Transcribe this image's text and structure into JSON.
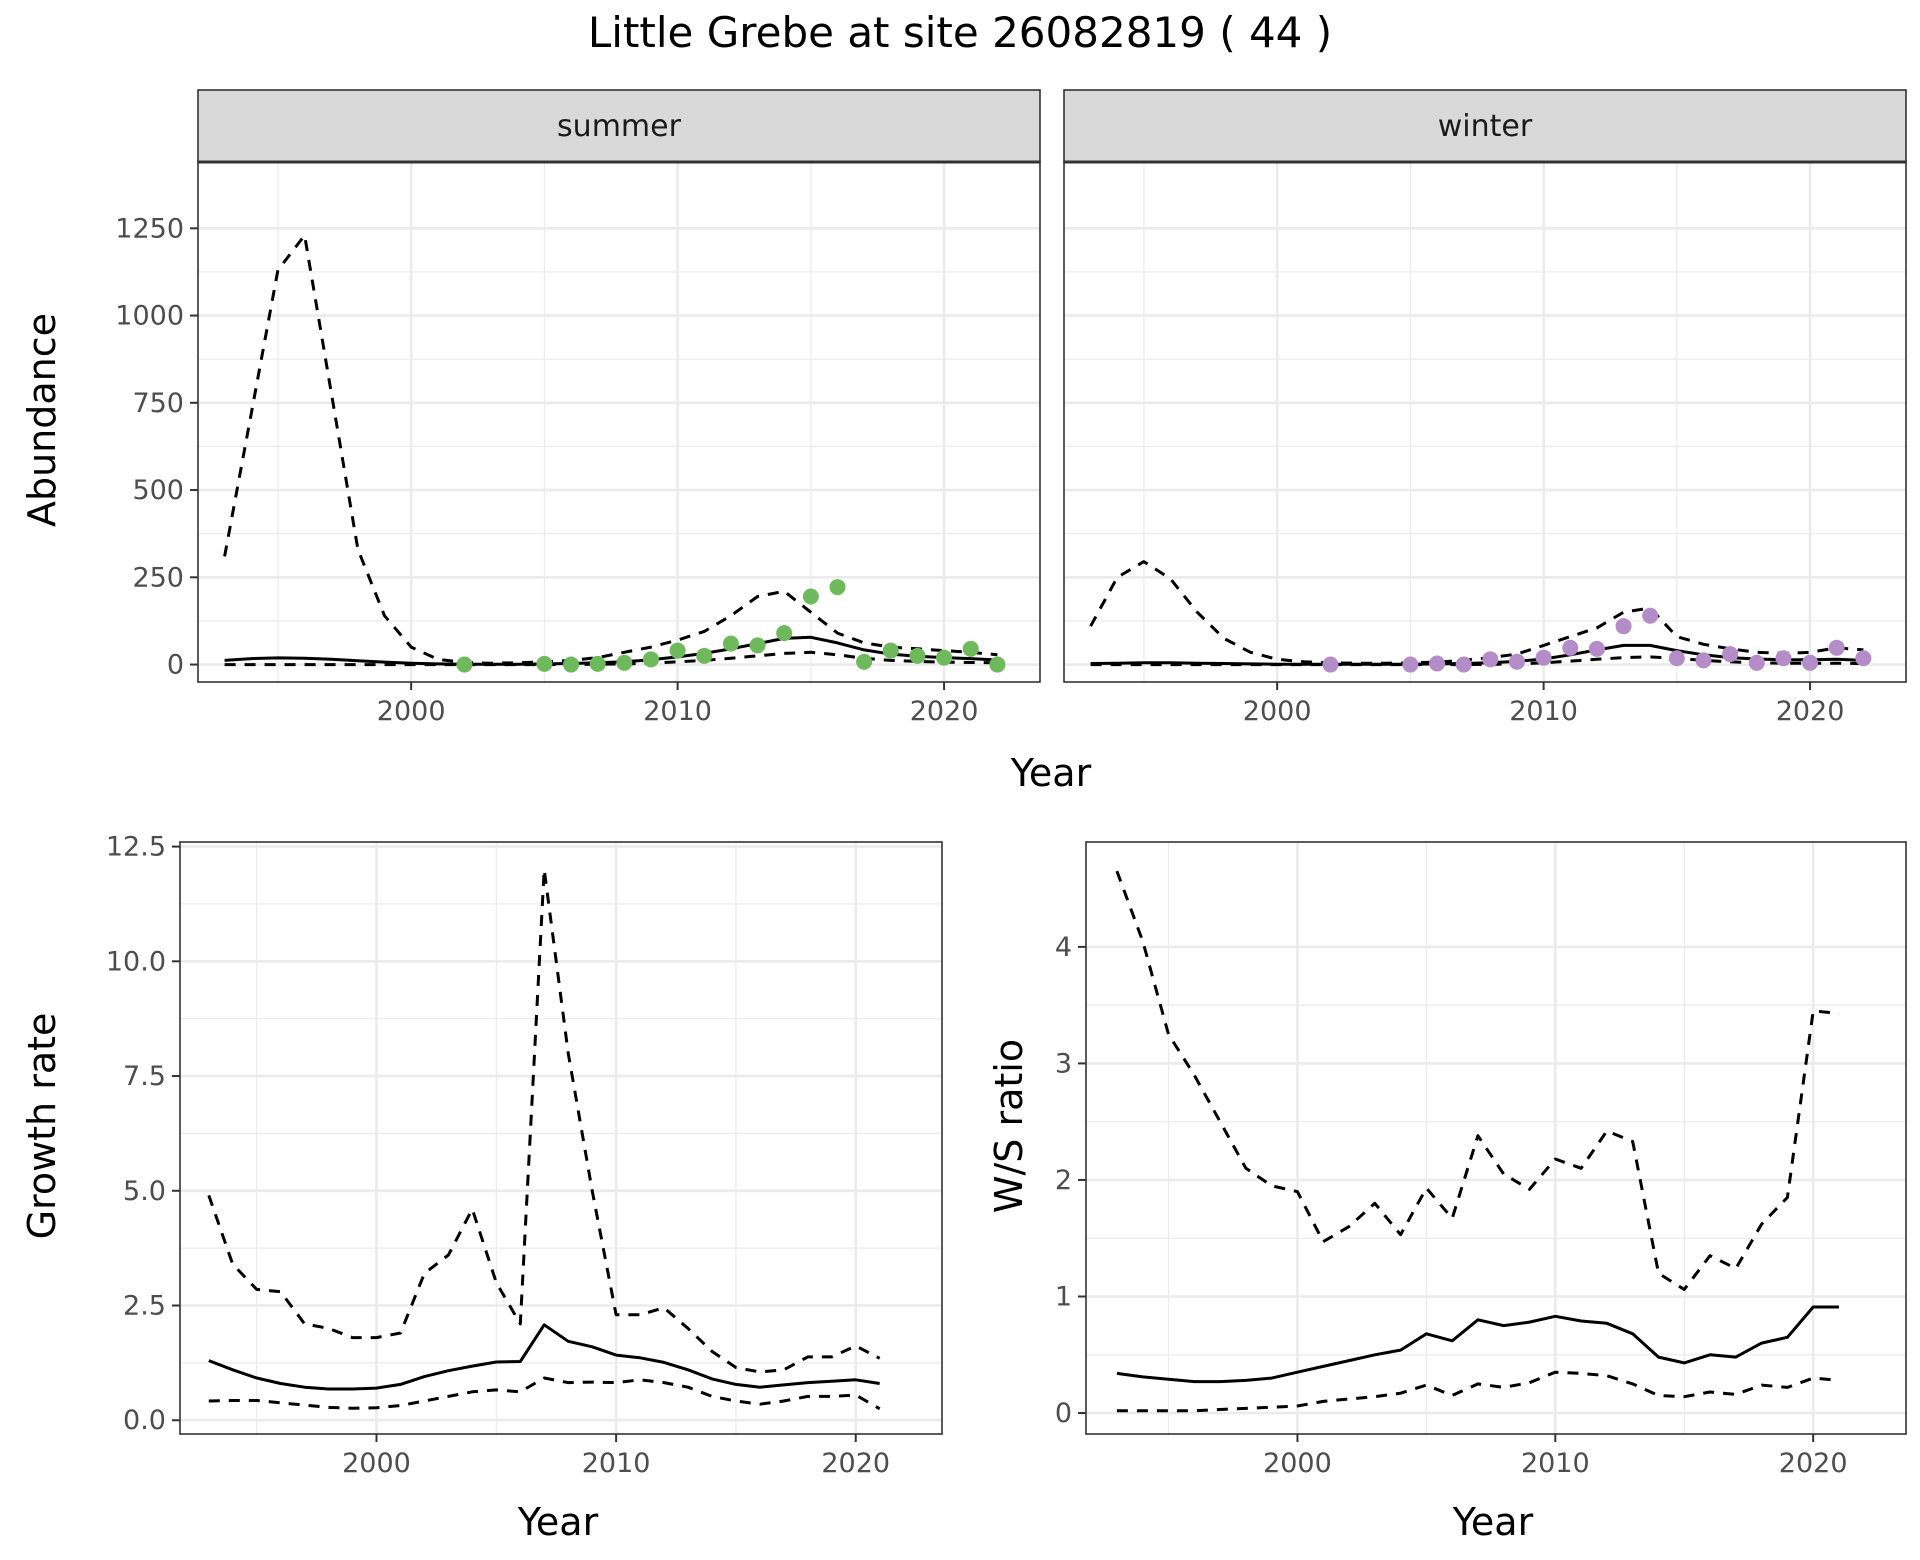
{
  "title": "Little Grebe at site 26082819 ( 44 )",
  "colors": {
    "summer_points": "#6db95b",
    "winter_points": "#b48cc8",
    "line": "#000000",
    "grid": "#ebebeb",
    "strip": "#d9d9d9"
  },
  "top": {
    "ylabel": "Abundance",
    "xlabel": "Year",
    "xlim": [
      1992,
      2023.6
    ],
    "ylim": [
      -50,
      1440
    ],
    "yticks": [
      0,
      250,
      500,
      750,
      1000,
      1250
    ],
    "ytick_labels": [
      "0",
      "250",
      "500",
      "750",
      "1000",
      "1250"
    ],
    "xticks": [
      2000,
      2010,
      2020
    ],
    "xtick_labels": [
      "2000",
      "2010",
      "2020"
    ]
  },
  "bottom_left": {
    "ylabel": "Growth rate",
    "xlabel": "Year",
    "xlim": [
      1991.8,
      2023.6
    ],
    "ylim": [
      -0.3,
      12.6
    ],
    "yticks": [
      0,
      2.5,
      5,
      7.5,
      10,
      12.5
    ],
    "ytick_labels": [
      "0.0",
      "2.5",
      "5.0",
      "7.5",
      "10.0",
      "12.5"
    ],
    "xticks": [
      2000,
      2010,
      2020
    ],
    "xtick_labels": [
      "2000",
      "2010",
      "2020"
    ]
  },
  "bottom_right": {
    "ylabel": "W/S ratio",
    "xlabel": "Year",
    "xlim": [
      1991.8,
      2023.6
    ],
    "ylim": [
      -0.18,
      4.9
    ],
    "yticks": [
      0,
      1,
      2,
      3,
      4
    ],
    "ytick_labels": [
      "0",
      "1",
      "2",
      "3",
      "4"
    ],
    "xticks": [
      2000,
      2010,
      2020
    ],
    "xtick_labels": [
      "2000",
      "2010",
      "2020"
    ]
  },
  "chart_data": [
    {
      "type": "line",
      "panel": "summer",
      "strip_label": "summer",
      "x": [
        1993,
        1994,
        1995,
        1996,
        1997,
        1998,
        1999,
        2000,
        2001,
        2002,
        2003,
        2004,
        2005,
        2006,
        2007,
        2008,
        2009,
        2010,
        2011,
        2012,
        2013,
        2014,
        2015,
        2016,
        2017,
        2018,
        2019,
        2020,
        2021,
        2022
      ],
      "series": [
        {
          "role": "estimate",
          "style": "solid",
          "values": [
            12,
            17,
            19,
            18,
            15,
            11,
            7,
            4,
            2,
            1,
            1,
            1,
            2,
            3,
            5,
            8,
            14,
            22,
            32,
            45,
            60,
            75,
            78,
            62,
            42,
            30,
            24,
            20,
            17,
            13
          ]
        },
        {
          "role": "upper",
          "style": "dashed",
          "values": [
            310,
            720,
            1130,
            1230,
            780,
            330,
            140,
            50,
            15,
            6,
            4,
            5,
            8,
            12,
            20,
            35,
            50,
            70,
            95,
            140,
            195,
            210,
            150,
            90,
            62,
            50,
            45,
            40,
            35,
            28
          ]
        },
        {
          "role": "lower",
          "style": "dashed",
          "values": [
            0,
            0,
            0,
            0,
            0,
            0,
            0,
            0,
            0,
            0,
            0,
            0,
            0,
            0,
            1,
            2,
            4,
            8,
            12,
            18,
            25,
            32,
            35,
            28,
            18,
            12,
            9,
            7,
            6,
            5
          ]
        }
      ],
      "points": {
        "x": [
          2002,
          2005,
          2006,
          2007,
          2008,
          2009,
          2010,
          2011,
          2012,
          2013,
          2014,
          2015,
          2016,
          2017,
          2018,
          2019,
          2020,
          2021,
          2022
        ],
        "y": [
          0,
          2,
          0,
          2,
          5,
          15,
          40,
          25,
          60,
          55,
          90,
          195,
          222,
          8,
          40,
          25,
          20,
          45,
          0
        ]
      }
    },
    {
      "type": "line",
      "panel": "winter",
      "strip_label": "winter",
      "x": [
        1993,
        1994,
        1995,
        1996,
        1997,
        1998,
        1999,
        2000,
        2001,
        2002,
        2003,
        2004,
        2005,
        2006,
        2007,
        2008,
        2009,
        2010,
        2011,
        2012,
        2013,
        2014,
        2015,
        2016,
        2017,
        2018,
        2019,
        2020,
        2021,
        2022
      ],
      "series": [
        {
          "role": "estimate",
          "style": "solid",
          "values": [
            3,
            4,
            5,
            5,
            4,
            3,
            2,
            1,
            1,
            1,
            1,
            1,
            1,
            2,
            3,
            5,
            9,
            16,
            28,
            42,
            55,
            55,
            40,
            28,
            20,
            16,
            14,
            14,
            15,
            12
          ]
        },
        {
          "role": "upper",
          "style": "dashed",
          "values": [
            110,
            250,
            295,
            245,
            150,
            75,
            35,
            15,
            8,
            5,
            4,
            4,
            5,
            7,
            12,
            20,
            30,
            55,
            80,
            105,
            150,
            162,
            80,
            58,
            45,
            35,
            32,
            35,
            48,
            42
          ]
        },
        {
          "role": "lower",
          "style": "dashed",
          "values": [
            0,
            0,
            0,
            0,
            0,
            0,
            0,
            0,
            0,
            0,
            0,
            0,
            0,
            0,
            0,
            1,
            2,
            5,
            10,
            15,
            20,
            22,
            18,
            12,
            8,
            5,
            4,
            4,
            4,
            3
          ]
        }
      ],
      "points": {
        "x": [
          2002,
          2005,
          2006,
          2007,
          2008,
          2009,
          2010,
          2011,
          2012,
          2013,
          2014,
          2015,
          2016,
          2017,
          2018,
          2019,
          2020,
          2021,
          2022
        ],
        "y": [
          0,
          0,
          3,
          0,
          15,
          8,
          20,
          48,
          45,
          110,
          140,
          18,
          12,
          30,
          5,
          18,
          5,
          48,
          18
        ]
      }
    },
    {
      "type": "line",
      "panel": "growth",
      "x": [
        1993,
        1994,
        1995,
        1996,
        1997,
        1998,
        1999,
        2000,
        2001,
        2002,
        2003,
        2004,
        2005,
        2006,
        2007,
        2008,
        2009,
        2010,
        2011,
        2012,
        2013,
        2014,
        2015,
        2016,
        2017,
        2018,
        2019,
        2020,
        2021
      ],
      "series": [
        {
          "role": "estimate",
          "style": "solid",
          "values": [
            1.3,
            1.1,
            0.92,
            0.8,
            0.72,
            0.68,
            0.68,
            0.7,
            0.78,
            0.95,
            1.08,
            1.18,
            1.27,
            1.28,
            2.08,
            1.72,
            1.6,
            1.42,
            1.36,
            1.26,
            1.1,
            0.9,
            0.78,
            0.72,
            0.77,
            0.82,
            0.85,
            0.88,
            0.8
          ]
        },
        {
          "role": "upper",
          "style": "dashed",
          "values": [
            4.9,
            3.4,
            2.85,
            2.8,
            2.1,
            2.0,
            1.8,
            1.8,
            1.9,
            3.2,
            3.6,
            4.6,
            3.0,
            2.1,
            12.0,
            8.0,
            5.0,
            2.3,
            2.3,
            2.45,
            2.0,
            1.5,
            1.15,
            1.05,
            1.1,
            1.38,
            1.38,
            1.62,
            1.35
          ]
        },
        {
          "role": "lower",
          "style": "dashed",
          "values": [
            0.42,
            0.43,
            0.43,
            0.38,
            0.33,
            0.28,
            0.26,
            0.27,
            0.32,
            0.42,
            0.52,
            0.62,
            0.66,
            0.62,
            0.92,
            0.82,
            0.83,
            0.82,
            0.88,
            0.82,
            0.72,
            0.52,
            0.42,
            0.35,
            0.42,
            0.52,
            0.52,
            0.55,
            0.25
          ]
        }
      ]
    },
    {
      "type": "line",
      "panel": "ratio",
      "x": [
        1993,
        1994,
        1995,
        1996,
        1997,
        1998,
        1999,
        2000,
        2001,
        2002,
        2003,
        2004,
        2005,
        2006,
        2007,
        2008,
        2009,
        2010,
        2011,
        2012,
        2013,
        2014,
        2015,
        2016,
        2017,
        2018,
        2019,
        2020,
        2021
      ],
      "series": [
        {
          "role": "estimate",
          "style": "solid",
          "values": [
            0.34,
            0.31,
            0.29,
            0.27,
            0.27,
            0.28,
            0.3,
            0.35,
            0.4,
            0.45,
            0.5,
            0.54,
            0.68,
            0.62,
            0.8,
            0.75,
            0.78,
            0.83,
            0.79,
            0.77,
            0.68,
            0.48,
            0.43,
            0.5,
            0.48,
            0.6,
            0.65,
            0.91,
            0.91
          ]
        },
        {
          "role": "upper",
          "style": "dashed",
          "values": [
            4.65,
            4.05,
            3.25,
            2.9,
            2.5,
            2.1,
            1.95,
            1.9,
            1.47,
            1.6,
            1.8,
            1.53,
            1.93,
            1.67,
            2.38,
            2.05,
            1.92,
            2.18,
            2.1,
            2.42,
            2.33,
            1.2,
            1.06,
            1.35,
            1.24,
            1.62,
            1.85,
            3.45,
            3.43
          ]
        },
        {
          "role": "lower",
          "style": "dashed",
          "values": [
            0.02,
            0.02,
            0.02,
            0.02,
            0.03,
            0.04,
            0.05,
            0.06,
            0.1,
            0.12,
            0.14,
            0.17,
            0.24,
            0.15,
            0.25,
            0.22,
            0.26,
            0.35,
            0.34,
            0.32,
            0.25,
            0.15,
            0.14,
            0.18,
            0.16,
            0.24,
            0.22,
            0.3,
            0.28
          ]
        }
      ]
    }
  ]
}
